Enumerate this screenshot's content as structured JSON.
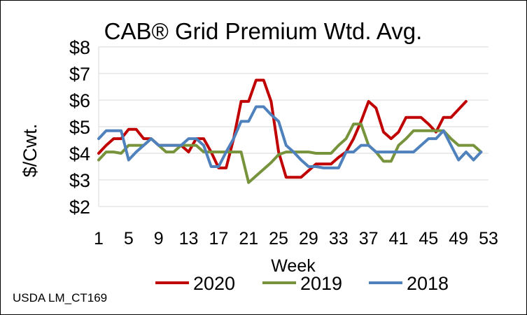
{
  "chart_data": {
    "type": "line",
    "title": "CAB® Grid Premium Wtd. Avg.",
    "xlabel": "Week",
    "ylabel": "$/Cwt.",
    "source_note": "USDA LM_CT169",
    "xlim": [
      1,
      53
    ],
    "ylim": [
      2,
      8
    ],
    "x_ticks": [
      1,
      5,
      9,
      13,
      17,
      21,
      25,
      29,
      33,
      37,
      41,
      45,
      49,
      53
    ],
    "y_ticks": [
      2,
      3,
      4,
      5,
      6,
      7,
      8
    ],
    "y_tick_labels": [
      "$2",
      "$3",
      "$4",
      "$5",
      "$6",
      "$7",
      "$8"
    ],
    "grid": "horizontal major gridlines",
    "legend_position": "bottom",
    "series": [
      {
        "name": "2020",
        "color": "#c00000",
        "x": [
          1,
          2,
          3,
          4,
          5,
          6,
          7,
          8,
          9,
          10,
          11,
          12,
          13,
          14,
          15,
          16,
          17,
          18,
          19,
          20,
          21,
          22,
          23,
          24,
          25,
          26,
          27,
          28,
          29,
          30,
          31,
          32,
          33,
          34,
          35,
          36,
          37,
          38,
          39,
          40,
          41,
          42,
          43,
          44,
          45,
          46,
          47,
          48,
          49,
          50
        ],
        "values": [
          4.0,
          4.3,
          4.55,
          4.55,
          4.9,
          4.9,
          4.55,
          4.55,
          4.3,
          4.3,
          4.3,
          4.3,
          4.05,
          4.55,
          4.55,
          4.05,
          3.45,
          3.45,
          4.55,
          5.95,
          5.95,
          6.75,
          6.75,
          5.95,
          4.05,
          3.1,
          3.1,
          3.1,
          3.35,
          3.6,
          3.6,
          3.6,
          3.85,
          4.05,
          4.55,
          5.2,
          5.95,
          5.7,
          4.8,
          4.55,
          4.8,
          5.35,
          5.35,
          5.35,
          5.1,
          4.8,
          5.35,
          5.35,
          5.65,
          5.95
        ]
      },
      {
        "name": "2019",
        "color": "#77933c",
        "x": [
          1,
          2,
          3,
          4,
          5,
          6,
          7,
          8,
          9,
          10,
          11,
          12,
          13,
          14,
          15,
          16,
          17,
          18,
          19,
          20,
          21,
          22,
          23,
          24,
          25,
          26,
          27,
          28,
          29,
          30,
          31,
          32,
          33,
          34,
          35,
          36,
          37,
          38,
          39,
          40,
          41,
          42,
          43,
          44,
          45,
          46,
          47,
          48,
          49,
          50,
          51,
          52
        ],
        "values": [
          3.75,
          4.05,
          4.05,
          4.0,
          4.3,
          4.3,
          4.3,
          4.55,
          4.3,
          4.05,
          4.05,
          4.3,
          4.3,
          4.3,
          4.05,
          4.05,
          4.05,
          4.05,
          4.05,
          4.05,
          2.9,
          3.15,
          3.4,
          3.65,
          3.95,
          4.05,
          4.05,
          4.05,
          4.05,
          4.0,
          4.0,
          4.0,
          4.3,
          4.55,
          5.1,
          5.1,
          4.3,
          4.05,
          3.7,
          3.7,
          4.3,
          4.55,
          4.85,
          4.85,
          4.85,
          4.85,
          4.85,
          4.55,
          4.3,
          4.3,
          4.3,
          4.05
        ]
      },
      {
        "name": "2018",
        "color": "#4f81bd",
        "x": [
          1,
          2,
          3,
          4,
          5,
          6,
          7,
          8,
          9,
          10,
          11,
          12,
          13,
          14,
          15,
          16,
          17,
          18,
          19,
          20,
          21,
          22,
          23,
          24,
          25,
          26,
          27,
          28,
          29,
          30,
          31,
          32,
          33,
          34,
          35,
          36,
          37,
          38,
          39,
          40,
          41,
          42,
          43,
          44,
          45,
          46,
          47,
          48,
          49,
          50,
          51,
          52
        ],
        "values": [
          4.55,
          4.85,
          4.85,
          4.85,
          3.75,
          4.05,
          4.3,
          4.55,
          4.3,
          4.3,
          4.3,
          4.3,
          4.55,
          4.55,
          4.3,
          3.5,
          3.5,
          4.05,
          4.55,
          5.2,
          5.2,
          5.75,
          5.75,
          5.45,
          5.2,
          4.3,
          4.05,
          3.75,
          3.5,
          3.5,
          3.45,
          3.45,
          3.45,
          4.05,
          4.05,
          4.3,
          4.3,
          4.05,
          4.05,
          4.05,
          4.05,
          4.05,
          4.05,
          4.3,
          4.55,
          4.55,
          4.85,
          4.3,
          3.75,
          4.05,
          3.75,
          4.05
        ]
      }
    ]
  }
}
